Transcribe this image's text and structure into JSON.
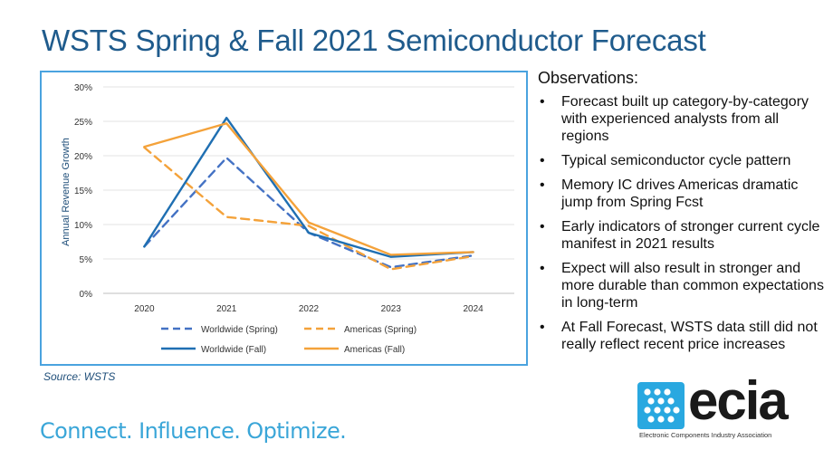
{
  "slide": {
    "title": "WSTS Spring & Fall 2021 Semiconductor Forecast",
    "source": "Source: WSTS",
    "tagline": "Connect. Influence. Optimize."
  },
  "observations": {
    "heading": "Observations:",
    "bullet_glyph": "•",
    "items": [
      "Forecast built up category-by-category with experienced analysts from all regions",
      "Typical semiconductor cycle pattern",
      "Memory IC drives Americas dramatic jump from Spring Fcst",
      "Early indicators of stronger current cycle manifest in 2021 results",
      "Expect will also result in stronger and more durable than common expectations in long-term",
      "At Fall Forecast, WSTS data still did not really reflect recent price increases"
    ]
  },
  "logo": {
    "word": "ecia",
    "subtitle": "Electronic Components Industry Association",
    "icon": "ecia-logo-icon",
    "color": "#29a8e0"
  },
  "chart_data": {
    "type": "line",
    "categories": [
      "2020",
      "2021",
      "2022",
      "2023",
      "2024"
    ],
    "ylabel": "Annual Revenue Growth",
    "ylim": [
      0,
      30
    ],
    "yticks": [
      "0%",
      "5%",
      "10%",
      "15%",
      "20%",
      "25%",
      "30%"
    ],
    "yticks_values": [
      0,
      5,
      10,
      15,
      20,
      25,
      30
    ],
    "grid": true,
    "legend": "bottom",
    "series": [
      {
        "name": "Worldwide (Spring)",
        "values": [
          6.8,
          19.7,
          8.8,
          3.8,
          5.5
        ],
        "color": "#4472c4",
        "dash": true
      },
      {
        "name": "Americas (Spring)",
        "values": [
          21.2,
          11.1,
          9.8,
          3.5,
          5.4
        ],
        "color": "#f4a23a",
        "dash": true
      },
      {
        "name": "Worldwide (Fall)",
        "values": [
          6.8,
          25.5,
          8.8,
          5.3,
          6.0
        ],
        "color": "#1f6fb2",
        "dash": false
      },
      {
        "name": "Americas (Fall)",
        "values": [
          21.3,
          24.7,
          10.3,
          5.6,
          6.0
        ],
        "color": "#f4a23a",
        "dash": false
      }
    ]
  }
}
